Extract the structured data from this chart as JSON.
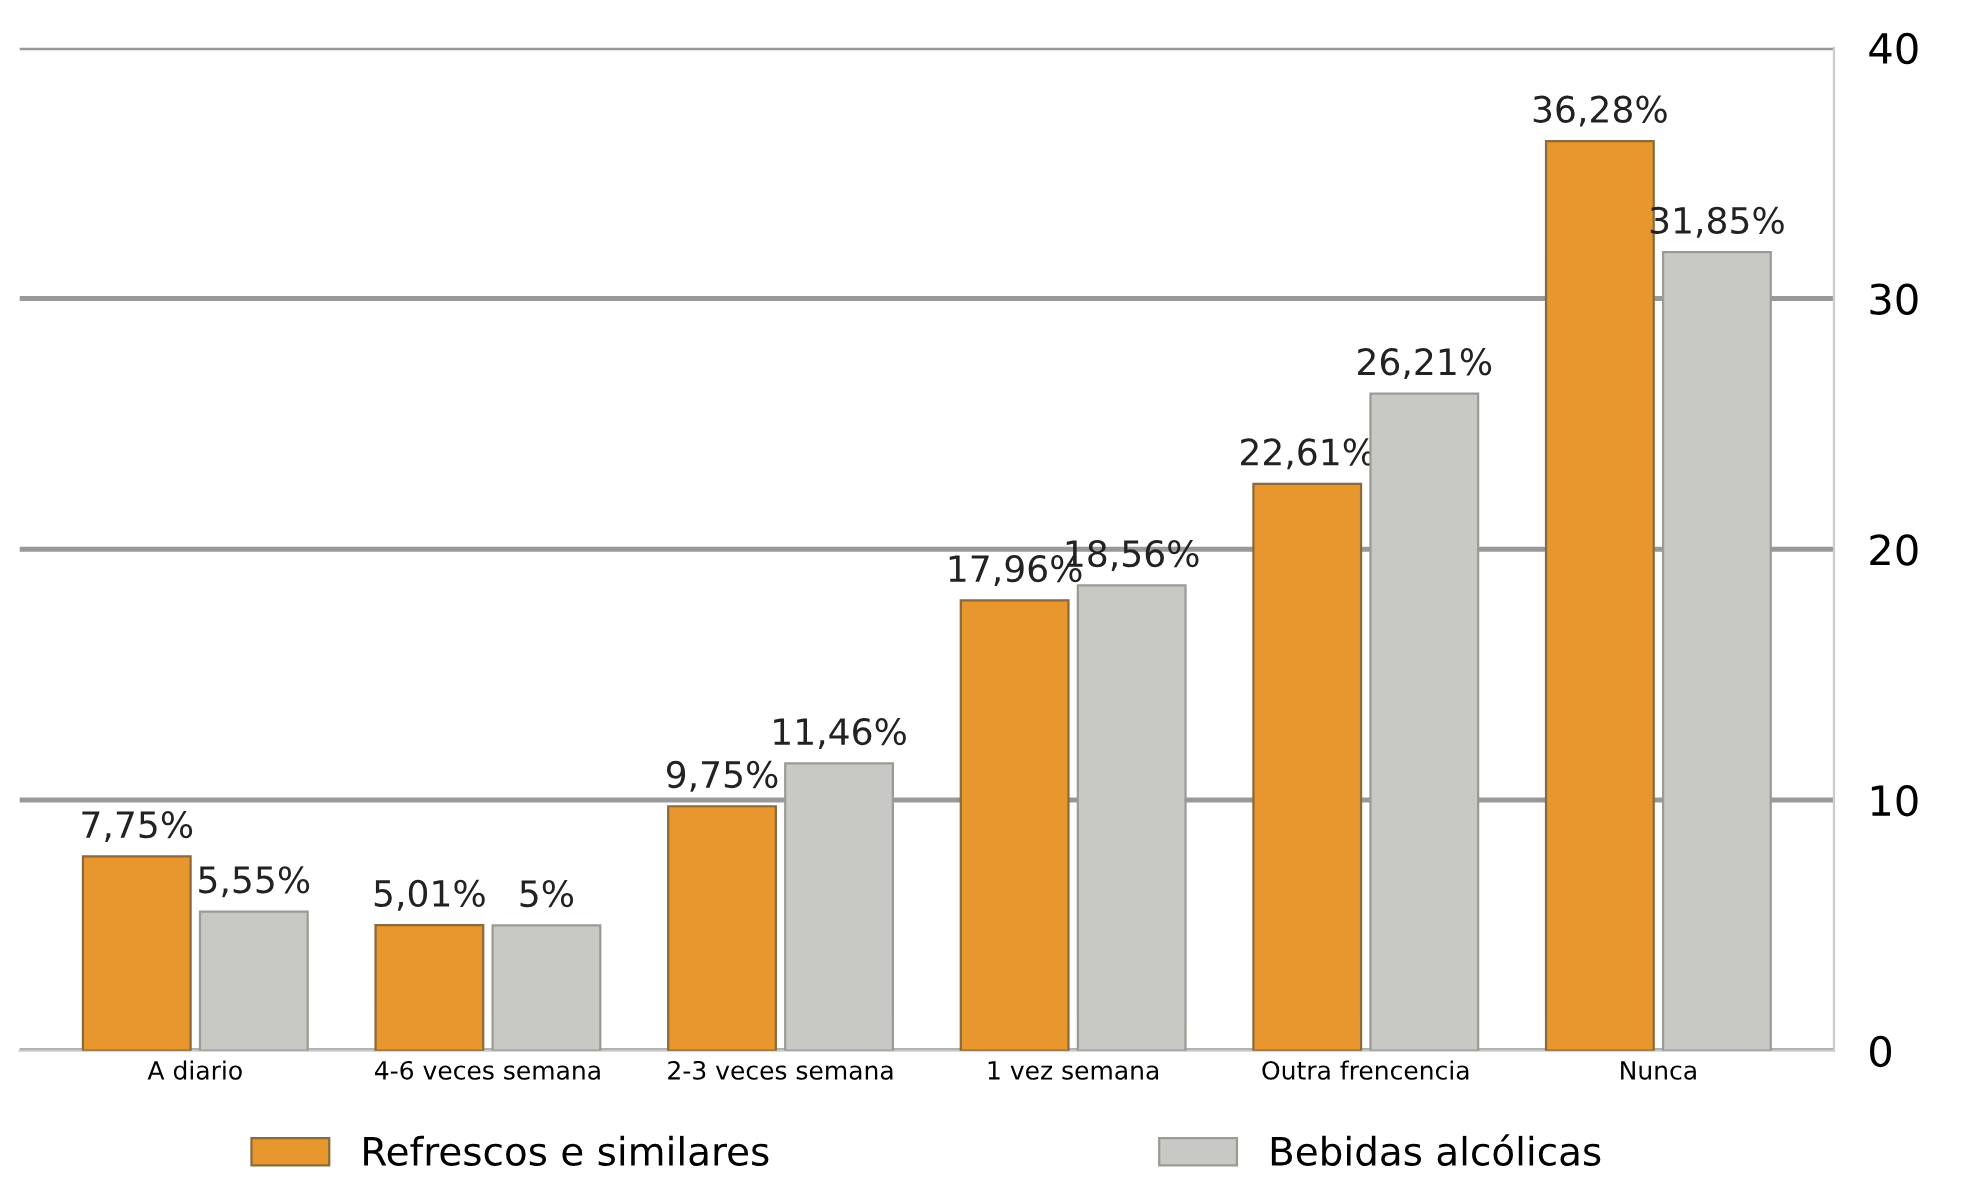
{
  "chart_data": {
    "type": "bar",
    "categories": [
      "A diario",
      "4-6 veces semana",
      "2-3 veces semana",
      "1 vez semana",
      "Outra frencencia",
      "Nunca"
    ],
    "series": [
      {
        "name": "Refrescos e similares",
        "color": "#e8962e",
        "values": [
          7.75,
          5.01,
          9.75,
          17.96,
          22.61,
          36.28
        ],
        "value_labels": [
          "7,75%",
          "5,01%",
          "9,75%",
          "17,96%",
          "22,61%",
          "36,28%"
        ]
      },
      {
        "name": "Bebidas alcólicas",
        "color": "#c8c8c4",
        "values": [
          5.55,
          5,
          11.46,
          18.56,
          26.21,
          31.85
        ],
        "value_labels": [
          "5,55%",
          "5%",
          "11,46%",
          "18,56%",
          "26,21%",
          "31,85%"
        ]
      }
    ],
    "ylim": [
      0,
      40
    ],
    "yticks": [
      0,
      10,
      20,
      30,
      40
    ],
    "grid": "y",
    "legend": "bottom"
  }
}
